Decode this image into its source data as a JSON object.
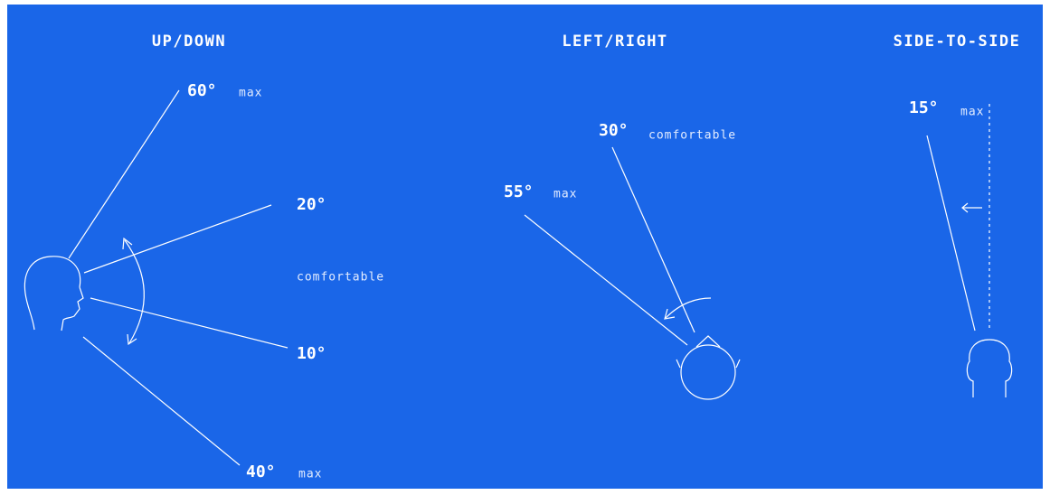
{
  "panels": [
    {
      "title": "UP/DOWN",
      "labels": [
        {
          "angle": "60°",
          "note": "max"
        },
        {
          "angle": "20°"
        },
        {
          "note": "comfortable"
        },
        {
          "angle": "10°"
        },
        {
          "angle": "40°",
          "note": "max"
        }
      ]
    },
    {
      "title": "LEFT/RIGHT",
      "labels": [
        {
          "angle": "30°",
          "note": "comfortable"
        },
        {
          "angle": "55°",
          "note": "max"
        }
      ]
    },
    {
      "title": "SIDE-TO-SIDE",
      "labels": [
        {
          "angle": "15°",
          "note": "max"
        }
      ]
    }
  ]
}
